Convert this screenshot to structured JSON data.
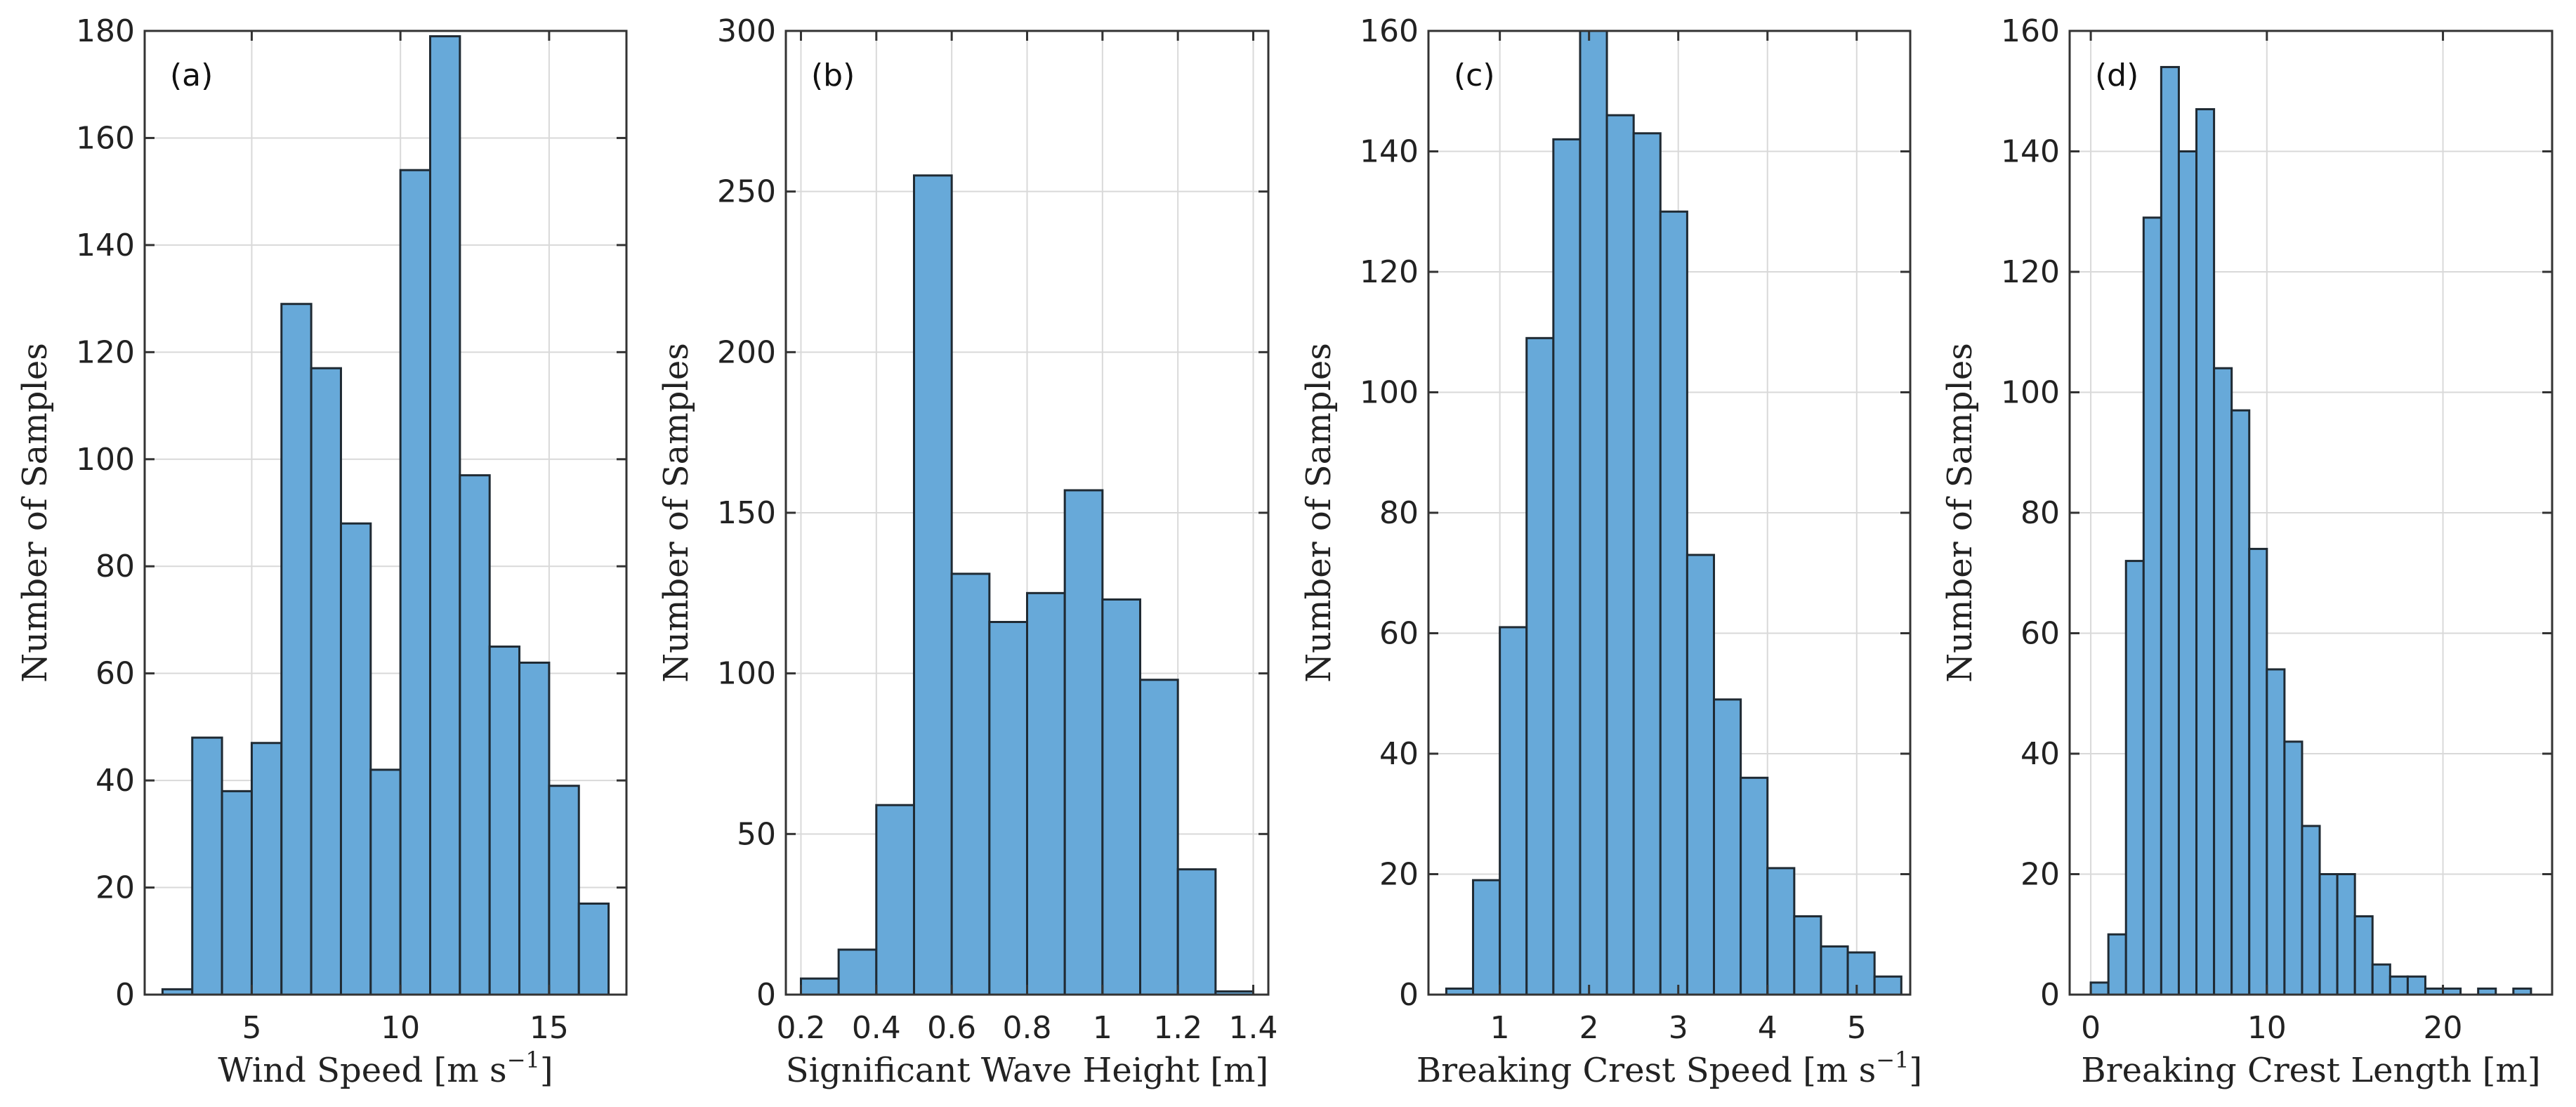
{
  "colors": {
    "bar_fill": "#67a9d9",
    "bar_edge": "#1f2a33"
  },
  "chart_data": [
    {
      "type": "bar",
      "panel_label": "(a)",
      "xlabel": "Wind Speed [m s",
      "xlabel_sup": "−1",
      "xlabel_tail": "]",
      "ylabel": "Number of Samples",
      "xlim": [
        1.4,
        17.6
      ],
      "ylim": [
        0,
        180
      ],
      "xticks": [
        5,
        10,
        15
      ],
      "xtick_labels": [
        "5",
        "10",
        "15"
      ],
      "yticks": [
        0,
        20,
        40,
        60,
        80,
        100,
        120,
        140,
        160,
        180
      ],
      "ytick_labels": [
        "0",
        "20",
        "40",
        "60",
        "80",
        "100",
        "120",
        "140",
        "160",
        "180"
      ],
      "bin_edges": [
        2,
        3,
        4,
        5,
        6,
        7,
        8,
        9,
        10,
        11,
        12,
        13,
        14,
        15,
        16,
        17
      ],
      "values": [
        1,
        48,
        38,
        47,
        129,
        117,
        88,
        42,
        154,
        179,
        97,
        65,
        62,
        39,
        17
      ]
    },
    {
      "type": "bar",
      "panel_label": "(b)",
      "xlabel": "Significant Wave Height [m]",
      "ylabel": "Number of Samples",
      "xlim": [
        0.16,
        1.44
      ],
      "ylim": [
        0,
        300
      ],
      "xticks": [
        0.2,
        0.4,
        0.6,
        0.8,
        1.0,
        1.2,
        1.4
      ],
      "xtick_labels": [
        "0.2",
        "0.4",
        "0.6",
        "0.8",
        "1",
        "1.2",
        "1.4"
      ],
      "yticks": [
        0,
        50,
        100,
        150,
        200,
        250,
        300
      ],
      "ytick_labels": [
        "0",
        "50",
        "100",
        "150",
        "200",
        "250",
        "300"
      ],
      "bin_edges": [
        0.2,
        0.3,
        0.4,
        0.5,
        0.6,
        0.7,
        0.8,
        0.9,
        1.0,
        1.1,
        1.2,
        1.3,
        1.4
      ],
      "values": [
        5,
        14,
        59,
        255,
        131,
        116,
        125,
        157,
        123,
        98,
        39,
        1
      ]
    },
    {
      "type": "bar",
      "panel_label": "(c)",
      "xlabel": "Breaking Crest Speed [m s",
      "xlabel_sup": "−1",
      "xlabel_tail": "]",
      "ylabel": "Number of Samples",
      "xlim": [
        0.2,
        5.6
      ],
      "ylim": [
        0,
        160
      ],
      "xticks": [
        1,
        2,
        3,
        4,
        5
      ],
      "xtick_labels": [
        "1",
        "2",
        "3",
        "4",
        "5"
      ],
      "yticks": [
        0,
        20,
        40,
        60,
        80,
        100,
        120,
        140,
        160
      ],
      "ytick_labels": [
        "0",
        "20",
        "40",
        "60",
        "80",
        "100",
        "120",
        "140",
        "160"
      ],
      "bin_edges": [
        0.4,
        0.7,
        1.0,
        1.3,
        1.6,
        1.9,
        2.2,
        2.5,
        2.8,
        3.1,
        3.4,
        3.7,
        4.0,
        4.3,
        4.6,
        4.9,
        5.2,
        5.5
      ],
      "values": [
        1,
        19,
        61,
        109,
        142,
        160,
        146,
        143,
        130,
        73,
        49,
        36,
        21,
        13,
        8,
        7,
        3
      ]
    },
    {
      "type": "bar",
      "panel_label": "(d)",
      "xlabel": "Breaking Crest Length [m]",
      "ylabel": "Number of Samples",
      "xlim": [
        -1.2,
        26.2
      ],
      "ylim": [
        0,
        160
      ],
      "xticks": [
        0,
        10,
        20
      ],
      "xtick_labels": [
        "0",
        "10",
        "20"
      ],
      "yticks": [
        0,
        20,
        40,
        60,
        80,
        100,
        120,
        140,
        160
      ],
      "ytick_labels": [
        "0",
        "20",
        "40",
        "60",
        "80",
        "100",
        "120",
        "140",
        "160"
      ],
      "bin_edges": [
        0,
        1,
        2,
        3,
        4,
        5,
        6,
        7,
        8,
        9,
        10,
        11,
        12,
        13,
        14,
        15,
        16,
        17,
        18,
        19,
        20,
        21,
        22,
        23,
        24,
        25
      ],
      "values": [
        2,
        10,
        72,
        129,
        154,
        140,
        147,
        104,
        97,
        74,
        54,
        42,
        28,
        20,
        20,
        13,
        5,
        3,
        3,
        1,
        1,
        0,
        1,
        0,
        1
      ]
    }
  ]
}
